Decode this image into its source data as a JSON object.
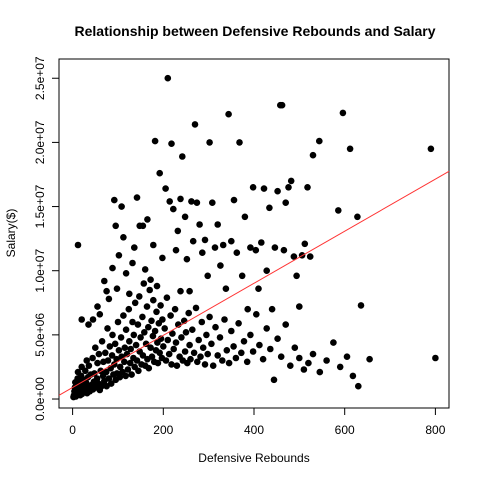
{
  "chart_data": {
    "type": "scatter",
    "title": "Relationship between Defensive Rebounds and Salary",
    "xlabel": "Defensive Rebounds",
    "ylabel": "Salary($)",
    "xlim": [
      -30,
      830
    ],
    "ylim": [
      -700000,
      26500000
    ],
    "x_ticks": [
      {
        "value": 0,
        "label": "0"
      },
      {
        "value": 200,
        "label": "200"
      },
      {
        "value": 400,
        "label": "400"
      },
      {
        "value": 600,
        "label": "600"
      },
      {
        "value": 800,
        "label": "800"
      }
    ],
    "y_ticks": [
      {
        "value": 0,
        "label": "0.0e+00"
      },
      {
        "value": 5000000,
        "label": "5.0e+06"
      },
      {
        "value": 10000000,
        "label": "1.0e+07"
      },
      {
        "value": 15000000,
        "label": "1.5e+07"
      },
      {
        "value": 20000000,
        "label": "2.0e+07"
      },
      {
        "value": 25000000,
        "label": "2.5e+07"
      }
    ],
    "grid": false,
    "legend": "none",
    "point_color": "#000000",
    "regression_line": {
      "intercept": 900000,
      "slope": 20300,
      "color": "#ff3333"
    },
    "points": [
      [
        2,
        150000
      ],
      [
        3,
        300000
      ],
      [
        4,
        600000
      ],
      [
        5,
        900000
      ],
      [
        6,
        1300000
      ],
      [
        7,
        200000
      ],
      [
        8,
        450000
      ],
      [
        9,
        750000
      ],
      [
        10,
        1100000
      ],
      [
        11,
        1600000
      ],
      [
        12,
        2100000
      ],
      [
        13,
        350000
      ],
      [
        14,
        500000
      ],
      [
        15,
        850000
      ],
      [
        16,
        1200000
      ],
      [
        17,
        300000
      ],
      [
        18,
        650000
      ],
      [
        19,
        1800000
      ],
      [
        20,
        2500000
      ],
      [
        21,
        400000
      ],
      [
        22,
        950000
      ],
      [
        23,
        1400000
      ],
      [
        24,
        700000
      ],
      [
        25,
        1000000
      ],
      [
        26,
        550000
      ],
      [
        27,
        1500000
      ],
      [
        28,
        2200000
      ],
      [
        29,
        800000
      ],
      [
        30,
        1250000
      ],
      [
        31,
        3000000
      ],
      [
        32,
        450000
      ],
      [
        34,
        1700000
      ],
      [
        35,
        900000
      ],
      [
        36,
        2600000
      ],
      [
        38,
        600000
      ],
      [
        40,
        1900000
      ],
      [
        42,
        1100000
      ],
      [
        44,
        3200000
      ],
      [
        45,
        750000
      ],
      [
        47,
        1350000
      ],
      [
        48,
        2000000
      ],
      [
        50,
        4000000
      ],
      [
        52,
        900000
      ],
      [
        54,
        1600000
      ],
      [
        55,
        2800000
      ],
      [
        57,
        1200000
      ],
      [
        58,
        3500000
      ],
      [
        60,
        700000
      ],
      [
        62,
        2200000
      ],
      [
        64,
        1000000
      ],
      [
        65,
        4500000
      ],
      [
        67,
        1800000
      ],
      [
        68,
        2900000
      ],
      [
        70,
        1400000
      ],
      [
        72,
        3600000
      ],
      [
        74,
        2100000
      ],
      [
        75,
        1000000
      ],
      [
        77,
        5500000
      ],
      [
        78,
        3000000
      ],
      [
        80,
        1600000
      ],
      [
        82,
        4100000
      ],
      [
        84,
        2400000
      ],
      [
        85,
        1200000
      ],
      [
        87,
        3400000
      ],
      [
        88,
        5000000
      ],
      [
        90,
        1900000
      ],
      [
        92,
        2700000
      ],
      [
        94,
        4300000
      ],
      [
        95,
        1500000
      ],
      [
        97,
        3100000
      ],
      [
        98,
        2000000
      ],
      [
        100,
        6000000
      ],
      [
        102,
        3800000
      ],
      [
        104,
        1700000
      ],
      [
        105,
        2500000
      ],
      [
        107,
        4800000
      ],
      [
        108,
        3300000
      ],
      [
        110,
        2100000
      ],
      [
        112,
        6500000
      ],
      [
        114,
        2900000
      ],
      [
        115,
        4000000
      ],
      [
        117,
        1800000
      ],
      [
        118,
        5400000
      ],
      [
        120,
        3500000
      ],
      [
        122,
        2300000
      ],
      [
        124,
        7000000
      ],
      [
        125,
        4500000
      ],
      [
        127,
        2800000
      ],
      [
        128,
        3900000
      ],
      [
        130,
        1900000
      ],
      [
        132,
        6000000
      ],
      [
        134,
        3200000
      ],
      [
        135,
        5000000
      ],
      [
        137,
        2500000
      ],
      [
        138,
        7500000
      ],
      [
        140,
        4200000
      ],
      [
        142,
        3000000
      ],
      [
        144,
        5800000
      ],
      [
        145,
        2200000
      ],
      [
        147,
        8000000
      ],
      [
        148,
        3700000
      ],
      [
        150,
        4800000
      ],
      [
        152,
        2700000
      ],
      [
        154,
        6400000
      ],
      [
        155,
        3400000
      ],
      [
        157,
        9000000
      ],
      [
        158,
        5200000
      ],
      [
        160,
        2600000
      ],
      [
        162,
        4300000
      ],
      [
        164,
        7200000
      ],
      [
        165,
        3100000
      ],
      [
        167,
        5600000
      ],
      [
        168,
        2400000
      ],
      [
        170,
        8500000
      ],
      [
        172,
        4000000
      ],
      [
        174,
        6100000
      ],
      [
        175,
        3300000
      ],
      [
        177,
        4900000
      ],
      [
        178,
        7700000
      ],
      [
        180,
        2900000
      ],
      [
        182,
        5300000
      ],
      [
        184,
        3800000
      ],
      [
        185,
        6800000
      ],
      [
        187,
        4400000
      ],
      [
        188,
        2800000
      ],
      [
        190,
        5900000
      ],
      [
        192,
        3600000
      ],
      [
        194,
        7300000
      ],
      [
        195,
        4700000
      ],
      [
        197,
        3200000
      ],
      [
        198,
        6200000
      ],
      [
        200,
        4100000
      ],
      [
        203,
        5500000
      ],
      [
        206,
        3000000
      ],
      [
        208,
        7900000
      ],
      [
        210,
        4600000
      ],
      [
        213,
        3500000
      ],
      [
        216,
        6500000
      ],
      [
        218,
        2700000
      ],
      [
        220,
        5100000
      ],
      [
        223,
        3900000
      ],
      [
        226,
        7000000
      ],
      [
        228,
        4400000
      ],
      [
        230,
        2600000
      ],
      [
        233,
        5800000
      ],
      [
        236,
        3300000
      ],
      [
        238,
        8400000
      ],
      [
        240,
        4800000
      ],
      [
        243,
        3000000
      ],
      [
        246,
        6100000
      ],
      [
        248,
        3700000
      ],
      [
        250,
        5200000
      ],
      [
        253,
        2800000
      ],
      [
        256,
        6700000
      ],
      [
        258,
        4200000
      ],
      [
        260,
        3100000
      ],
      [
        264,
        5400000
      ],
      [
        268,
        3600000
      ],
      [
        272,
        7100000
      ],
      [
        275,
        2900000
      ],
      [
        278,
        4600000
      ],
      [
        282,
        3300000
      ],
      [
        285,
        6000000
      ],
      [
        288,
        4000000
      ],
      [
        292,
        2700000
      ],
      [
        295,
        5000000
      ],
      [
        298,
        3500000
      ],
      [
        302,
        6400000
      ],
      [
        306,
        4300000
      ],
      [
        310,
        2600000
      ],
      [
        315,
        5600000
      ],
      [
        320,
        3400000
      ],
      [
        325,
        4800000
      ],
      [
        330,
        3000000
      ],
      [
        335,
        6200000
      ],
      [
        340,
        3800000
      ],
      [
        345,
        2800000
      ],
      [
        350,
        5300000
      ],
      [
        355,
        4100000
      ],
      [
        360,
        3200000
      ],
      [
        366,
        5900000
      ],
      [
        372,
        3600000
      ],
      [
        378,
        4500000
      ],
      [
        385,
        2900000
      ],
      [
        392,
        5000000
      ],
      [
        398,
        3700000
      ],
      [
        405,
        6600000
      ],
      [
        412,
        4200000
      ],
      [
        420,
        3100000
      ],
      [
        428,
        5500000
      ],
      [
        436,
        3900000
      ],
      [
        444,
        1500000
      ],
      [
        452,
        4700000
      ],
      [
        460,
        3300000
      ],
      [
        470,
        5800000
      ],
      [
        480,
        2600000
      ],
      [
        490,
        4000000
      ],
      [
        500,
        3200000
      ],
      [
        510,
        2300000
      ],
      [
        520,
        2800000
      ],
      [
        530,
        3500000
      ],
      [
        545,
        2100000
      ],
      [
        560,
        3000000
      ],
      [
        575,
        4400000
      ],
      [
        590,
        2500000
      ],
      [
        605,
        3300000
      ],
      [
        618,
        1800000
      ],
      [
        630,
        1000000
      ],
      [
        655,
        3100000
      ],
      [
        800,
        3200000
      ],
      [
        12,
        12000000
      ],
      [
        20,
        6200000
      ],
      [
        35,
        5800000
      ],
      [
        45,
        6200000
      ],
      [
        55,
        7200000
      ],
      [
        60,
        6600000
      ],
      [
        70,
        9200000
      ],
      [
        75,
        8400000
      ],
      [
        80,
        7800000
      ],
      [
        88,
        10200000
      ],
      [
        92,
        15500000
      ],
      [
        95,
        13500000
      ],
      [
        98,
        8600000
      ],
      [
        102,
        11200000
      ],
      [
        108,
        15000000
      ],
      [
        112,
        12600000
      ],
      [
        118,
        9800000
      ],
      [
        125,
        8200000
      ],
      [
        132,
        10600000
      ],
      [
        136,
        11800000
      ],
      [
        142,
        15700000
      ],
      [
        148,
        13500000
      ],
      [
        155,
        13500000
      ],
      [
        160,
        10100000
      ],
      [
        165,
        14000000
      ],
      [
        172,
        9300000
      ],
      [
        178,
        12000000
      ],
      [
        182,
        20100000
      ],
      [
        186,
        8800000
      ],
      [
        192,
        17600000
      ],
      [
        198,
        11000000
      ],
      [
        205,
        16400000
      ],
      [
        210,
        25000000
      ],
      [
        214,
        15400000
      ],
      [
        218,
        19900000
      ],
      [
        222,
        14800000
      ],
      [
        228,
        11600000
      ],
      [
        232,
        13100000
      ],
      [
        238,
        15600000
      ],
      [
        242,
        18900000
      ],
      [
        248,
        14200000
      ],
      [
        252,
        10900000
      ],
      [
        258,
        8400000
      ],
      [
        262,
        15400000
      ],
      [
        266,
        12300000
      ],
      [
        270,
        21400000
      ],
      [
        274,
        15300000
      ],
      [
        280,
        13600000
      ],
      [
        286,
        11400000
      ],
      [
        292,
        12400000
      ],
      [
        298,
        9600000
      ],
      [
        302,
        20000000
      ],
      [
        308,
        15300000
      ],
      [
        314,
        11800000
      ],
      [
        320,
        13600000
      ],
      [
        326,
        10400000
      ],
      [
        332,
        12000000
      ],
      [
        338,
        8600000
      ],
      [
        344,
        22200000
      ],
      [
        350,
        12300000
      ],
      [
        356,
        15500000
      ],
      [
        362,
        11400000
      ],
      [
        368,
        20000000
      ],
      [
        374,
        9600000
      ],
      [
        380,
        14200000
      ],
      [
        386,
        7000000
      ],
      [
        392,
        11800000
      ],
      [
        398,
        16500000
      ],
      [
        404,
        11600000
      ],
      [
        410,
        8600000
      ],
      [
        416,
        12200000
      ],
      [
        422,
        16400000
      ],
      [
        428,
        10000000
      ],
      [
        434,
        14900000
      ],
      [
        440,
        7000000
      ],
      [
        446,
        11800000
      ],
      [
        452,
        16200000
      ],
      [
        458,
        22900000
      ],
      [
        462,
        22900000
      ],
      [
        466,
        11600000
      ],
      [
        470,
        15300000
      ],
      [
        476,
        16500000
      ],
      [
        482,
        17000000
      ],
      [
        488,
        11100000
      ],
      [
        494,
        9600000
      ],
      [
        500,
        7200000
      ],
      [
        506,
        11200000
      ],
      [
        512,
        12100000
      ],
      [
        518,
        16500000
      ],
      [
        524,
        11100000
      ],
      [
        530,
        19000000
      ],
      [
        544,
        20100000
      ],
      [
        586,
        14700000
      ],
      [
        596,
        22300000
      ],
      [
        612,
        19500000
      ],
      [
        628,
        14200000
      ],
      [
        636,
        7300000
      ],
      [
        790,
        19500000
      ]
    ]
  }
}
